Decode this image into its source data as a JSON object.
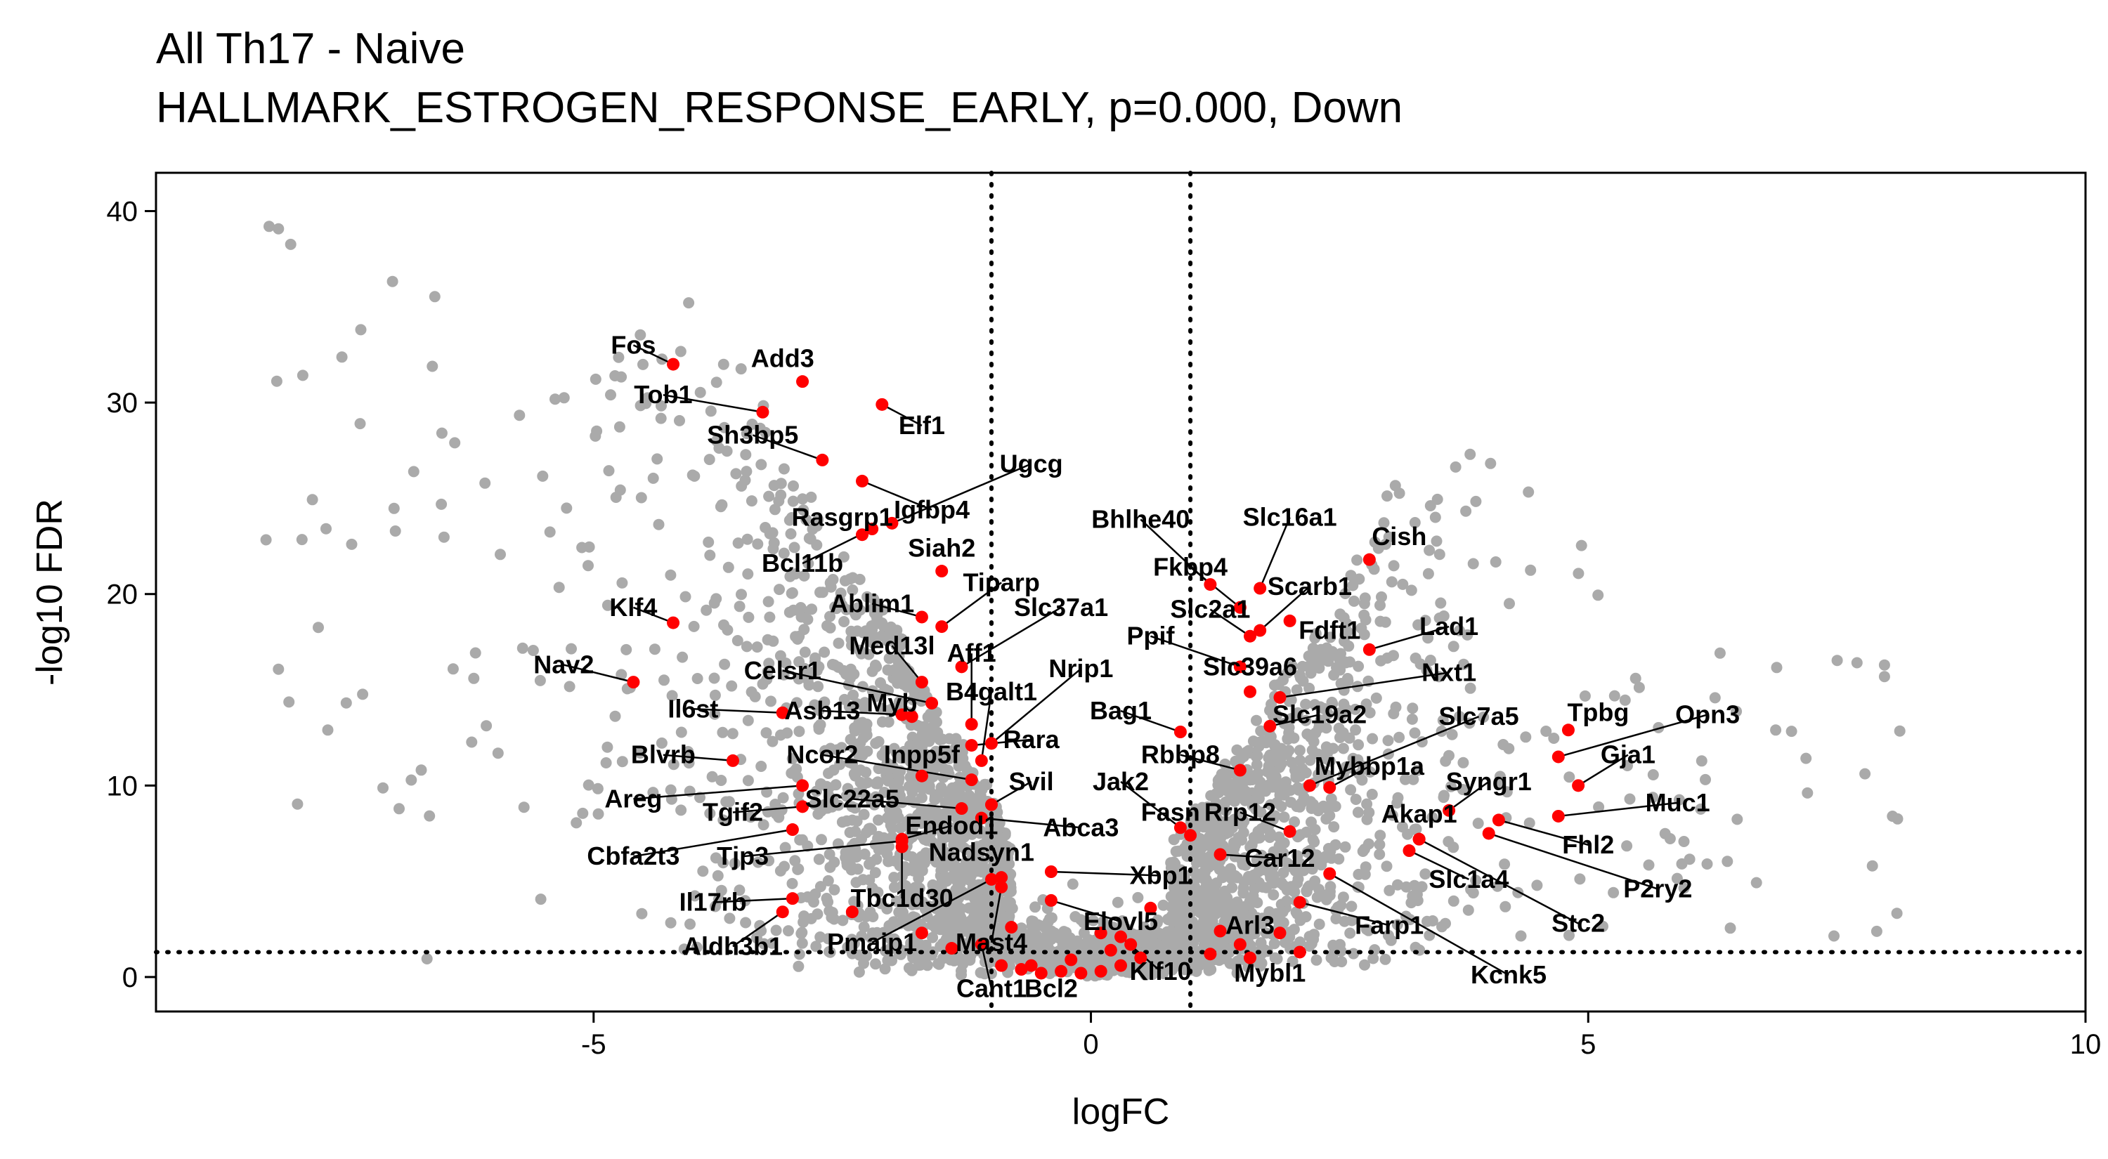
{
  "title": {
    "line1": "All Th17 - Naive",
    "line2": "HALLMARK_ESTROGEN_RESPONSE_EARLY, p=0.000, Down"
  },
  "colors": {
    "background_points": "#aaaaaa",
    "highlight_points": "#ff0000",
    "threshold_lines": "#000000",
    "text": "#000000"
  },
  "chart_data": {
    "type": "scatter",
    "xlabel": "logFC",
    "ylabel": "-log10 FDR",
    "xlim": [
      -9.4,
      10.0
    ],
    "ylim": [
      -1.8,
      42.0
    ],
    "x_ticks": [
      -5,
      0,
      5,
      10
    ],
    "x_tick_labels": [
      "-5",
      "0",
      "5",
      "10"
    ],
    "y_ticks": [
      0,
      10,
      20,
      30,
      40
    ],
    "y_tick_labels": [
      "0",
      "10",
      "20",
      "30",
      "40"
    ],
    "grid": false,
    "threshold_lines": {
      "vertical_x": [
        -1,
        1
      ],
      "horizontal_y": [
        1.3
      ],
      "style": "dotted"
    },
    "highlighted_genes": [
      {
        "gene": "Fos",
        "x": -4.2,
        "y": 32.0,
        "label_x": -4.6,
        "label_y": 33.0
      },
      {
        "gene": "Add3",
        "x": -2.9,
        "y": 31.1,
        "label_x": -3.1,
        "label_y": 32.3
      },
      {
        "gene": "Tob1",
        "x": -3.3,
        "y": 29.5,
        "label_x": -4.3,
        "label_y": 30.4
      },
      {
        "gene": "Elf1",
        "x": -2.1,
        "y": 29.9,
        "label_x": -1.7,
        "label_y": 28.8
      },
      {
        "gene": "Sh3bp5",
        "x": -2.7,
        "y": 27.0,
        "label_x": -3.4,
        "label_y": 28.3
      },
      {
        "gene": "Ugcg",
        "x": -2.0,
        "y": 23.7,
        "label_x": -0.6,
        "label_y": 26.8
      },
      {
        "gene": "Igfbp4",
        "x": -2.3,
        "y": 25.9,
        "label_x": -1.6,
        "label_y": 24.4
      },
      {
        "gene": "Rasgrp1",
        "x": -2.3,
        "y": 23.1,
        "label_x": -2.5,
        "label_y": 24.0
      },
      {
        "gene": "Bcl11b",
        "x": -2.2,
        "y": 23.4,
        "label_x": -2.9,
        "label_y": 21.6
      },
      {
        "gene": "Siah2",
        "x": -1.5,
        "y": 21.2,
        "label_x": -1.5,
        "label_y": 22.4
      },
      {
        "gene": "Bhlhe40",
        "x": 1.2,
        "y": 20.5,
        "label_x": 0.5,
        "label_y": 23.9
      },
      {
        "gene": "Slc16a1",
        "x": 1.7,
        "y": 20.3,
        "label_x": 2.0,
        "label_y": 24.0
      },
      {
        "gene": "Cish",
        "x": 2.8,
        "y": 21.8,
        "label_x": 3.1,
        "label_y": 23.0
      },
      {
        "gene": "Fkbp4",
        "x": 1.5,
        "y": 19.3,
        "label_x": 1.0,
        "label_y": 21.4
      },
      {
        "gene": "Scarb1",
        "x": 1.7,
        "y": 18.1,
        "label_x": 2.2,
        "label_y": 20.4
      },
      {
        "gene": "Tiparp",
        "x": -1.5,
        "y": 18.3,
        "label_x": -0.9,
        "label_y": 20.6
      },
      {
        "gene": "Ablim1",
        "x": -1.7,
        "y": 18.8,
        "label_x": -2.2,
        "label_y": 19.5
      },
      {
        "gene": "Slc37a1",
        "x": -1.3,
        "y": 16.2,
        "label_x": -0.3,
        "label_y": 19.3
      },
      {
        "gene": "Slc2a1",
        "x": 1.6,
        "y": 17.8,
        "label_x": 1.2,
        "label_y": 19.2
      },
      {
        "gene": "Fdft1",
        "x": 2.0,
        "y": 18.6,
        "label_x": 2.4,
        "label_y": 18.1
      },
      {
        "gene": "Klf4",
        "x": -4.2,
        "y": 18.5,
        "label_x": -4.6,
        "label_y": 19.3
      },
      {
        "gene": "Ppif",
        "x": 1.5,
        "y": 16.2,
        "label_x": 0.6,
        "label_y": 17.8
      },
      {
        "gene": "Lad1",
        "x": 2.8,
        "y": 17.1,
        "label_x": 3.6,
        "label_y": 18.3
      },
      {
        "gene": "Med13l",
        "x": -1.7,
        "y": 15.4,
        "label_x": -2.0,
        "label_y": 17.3
      },
      {
        "gene": "Aff1",
        "x": -1.2,
        "y": 13.2,
        "label_x": -1.2,
        "label_y": 16.9
      },
      {
        "gene": "Slc39a6",
        "x": 1.6,
        "y": 14.9,
        "label_x": 1.6,
        "label_y": 16.2
      },
      {
        "gene": "Nav2",
        "x": -4.6,
        "y": 15.4,
        "label_x": -5.3,
        "label_y": 16.3
      },
      {
        "gene": "Celsr1",
        "x": -1.6,
        "y": 14.3,
        "label_x": -3.1,
        "label_y": 16.0
      },
      {
        "gene": "Nrip1",
        "x": -1.0,
        "y": 12.2,
        "label_x": -0.1,
        "label_y": 16.1
      },
      {
        "gene": "Nxt1",
        "x": 1.9,
        "y": 14.6,
        "label_x": 3.6,
        "label_y": 15.9
      },
      {
        "gene": "B4galt1",
        "x": -1.1,
        "y": 11.3,
        "label_x": -1.0,
        "label_y": 14.9
      },
      {
        "gene": "Myb",
        "x": -1.8,
        "y": 13.6,
        "label_x": -2.0,
        "label_y": 14.3
      },
      {
        "gene": "Il6st",
        "x": -3.1,
        "y": 13.8,
        "label_x": -4.0,
        "label_y": 14.0
      },
      {
        "gene": "Asb13",
        "x": -1.9,
        "y": 13.7,
        "label_x": -2.7,
        "label_y": 13.9
      },
      {
        "gene": "Bag1",
        "x": 0.9,
        "y": 12.8,
        "label_x": 0.3,
        "label_y": 13.9
      },
      {
        "gene": "Slc19a2",
        "x": 1.8,
        "y": 13.1,
        "label_x": 2.3,
        "label_y": 13.7
      },
      {
        "gene": "Slc7a5",
        "x": 2.2,
        "y": 10.0,
        "label_x": 3.9,
        "label_y": 13.6
      },
      {
        "gene": "Tpbg",
        "x": 4.8,
        "y": 12.9,
        "label_x": 5.1,
        "label_y": 13.8
      },
      {
        "gene": "Opn3",
        "x": 4.7,
        "y": 11.5,
        "label_x": 6.2,
        "label_y": 13.7
      },
      {
        "gene": "Rara",
        "x": -1.2,
        "y": 12.1,
        "label_x": -0.6,
        "label_y": 12.4
      },
      {
        "gene": "Rbbp8",
        "x": 1.5,
        "y": 10.8,
        "label_x": 0.9,
        "label_y": 11.6
      },
      {
        "gene": "Blvrb",
        "x": -3.6,
        "y": 11.3,
        "label_x": -4.3,
        "label_y": 11.6
      },
      {
        "gene": "Ncor2",
        "x": -1.2,
        "y": 10.3,
        "label_x": -2.7,
        "label_y": 11.6
      },
      {
        "gene": "Inpp5f",
        "x": -1.7,
        "y": 10.5,
        "label_x": -1.7,
        "label_y": 11.6
      },
      {
        "gene": "Gja1",
        "x": 4.9,
        "y": 10.0,
        "label_x": 5.4,
        "label_y": 11.6
      },
      {
        "gene": "Mybbp1a",
        "x": 2.4,
        "y": 9.9,
        "label_x": 2.8,
        "label_y": 11.0
      },
      {
        "gene": "Svil",
        "x": -1.0,
        "y": 9.0,
        "label_x": -0.6,
        "label_y": 10.2
      },
      {
        "gene": "Jak2",
        "x": 0.9,
        "y": 7.8,
        "label_x": 0.3,
        "label_y": 10.2
      },
      {
        "gene": "Syngr1",
        "x": 3.6,
        "y": 8.7,
        "label_x": 4.0,
        "label_y": 10.2
      },
      {
        "gene": "Areg",
        "x": -2.9,
        "y": 10.0,
        "label_x": -4.6,
        "label_y": 9.3
      },
      {
        "gene": "Slc22a5",
        "x": -1.3,
        "y": 8.8,
        "label_x": -2.4,
        "label_y": 9.3
      },
      {
        "gene": "Muc1",
        "x": 4.7,
        "y": 8.4,
        "label_x": 5.9,
        "label_y": 9.1
      },
      {
        "gene": "Tgif2",
        "x": -2.9,
        "y": 8.9,
        "label_x": -3.6,
        "label_y": 8.6
      },
      {
        "gene": "Fasn",
        "x": 1.0,
        "y": 7.4,
        "label_x": 0.8,
        "label_y": 8.6
      },
      {
        "gene": "Rrp12",
        "x": 2.0,
        "y": 7.6,
        "label_x": 1.5,
        "label_y": 8.6
      },
      {
        "gene": "Akap1",
        "x": 3.3,
        "y": 7.2,
        "label_x": 3.3,
        "label_y": 8.5
      },
      {
        "gene": "Endod1",
        "x": -1.9,
        "y": 7.2,
        "label_x": -1.4,
        "label_y": 7.9
      },
      {
        "gene": "Abca3",
        "x": -1.1,
        "y": 8.3,
        "label_x": -0.1,
        "label_y": 7.8
      },
      {
        "gene": "Fhl2",
        "x": 4.1,
        "y": 8.2,
        "label_x": 5.0,
        "label_y": 6.9
      },
      {
        "gene": "Cbfa2t3",
        "x": -3.0,
        "y": 7.7,
        "label_x": -4.6,
        "label_y": 6.3
      },
      {
        "gene": "Tjp3",
        "x": -1.9,
        "y": 7.1,
        "label_x": -3.5,
        "label_y": 6.3
      },
      {
        "gene": "Nadsyn1",
        "x": -0.9,
        "y": 5.2,
        "label_x": -1.1,
        "label_y": 6.5
      },
      {
        "gene": "Car12",
        "x": 1.3,
        "y": 6.4,
        "label_x": 1.9,
        "label_y": 6.2
      },
      {
        "gene": "Xbp1",
        "x": -0.4,
        "y": 5.5,
        "label_x": 0.7,
        "label_y": 5.3
      },
      {
        "gene": "Slc1a4",
        "x": 3.2,
        "y": 6.6,
        "label_x": 3.8,
        "label_y": 5.1
      },
      {
        "gene": "P2ry2",
        "x": 4.0,
        "y": 7.5,
        "label_x": 5.7,
        "label_y": 4.6
      },
      {
        "gene": "Tbc1d30",
        "x": -1.9,
        "y": 6.8,
        "label_x": -1.9,
        "label_y": 4.1
      },
      {
        "gene": "Il17rb",
        "x": -3.0,
        "y": 4.1,
        "label_x": -3.8,
        "label_y": 3.9
      },
      {
        "gene": "Arl3",
        "x": 1.5,
        "y": 1.7,
        "label_x": 1.6,
        "label_y": 2.7
      },
      {
        "gene": "Farp1",
        "x": 2.1,
        "y": 3.9,
        "label_x": 3.0,
        "label_y": 2.7
      },
      {
        "gene": "Stc2",
        "x": 3.3,
        "y": 7.2,
        "label_x": 4.9,
        "label_y": 2.8
      },
      {
        "gene": "Elovl5",
        "x": -0.4,
        "y": 4.0,
        "label_x": 0.3,
        "label_y": 2.9
      },
      {
        "gene": "Pmaip1",
        "x": -1.0,
        "y": 5.1,
        "label_x": -2.2,
        "label_y": 1.8
      },
      {
        "gene": "Mast4",
        "x": -0.9,
        "y": 4.7,
        "label_x": -1.0,
        "label_y": 1.8
      },
      {
        "gene": "Aldh3b1",
        "x": -3.1,
        "y": 3.4,
        "label_x": -3.6,
        "label_y": 1.6
      },
      {
        "gene": "Klf10",
        "x": 0.3,
        "y": 2.1,
        "label_x": 0.7,
        "label_y": 0.3
      },
      {
        "gene": "Mybl1",
        "x": 1.9,
        "y": 2.3,
        "label_x": 1.8,
        "label_y": 0.2
      },
      {
        "gene": "Kcnk5",
        "x": 2.4,
        "y": 5.4,
        "label_x": 4.2,
        "label_y": 0.1
      },
      {
        "gene": "Cant1",
        "x": -1.1,
        "y": 1.7,
        "label_x": -1.0,
        "label_y": -0.6
      },
      {
        "gene": "Bcl2",
        "x": -0.6,
        "y": 0.6,
        "label_x": -0.4,
        "label_y": -0.6
      }
    ],
    "extra_highlighted_points": [
      {
        "x": -0.9,
        "y": 0.6
      },
      {
        "x": -0.7,
        "y": 0.4
      },
      {
        "x": -0.5,
        "y": 0.2
      },
      {
        "x": -0.3,
        "y": 0.3
      },
      {
        "x": -0.1,
        "y": 0.2
      },
      {
        "x": 0.1,
        "y": 0.3
      },
      {
        "x": 0.3,
        "y": 0.6
      },
      {
        "x": 0.5,
        "y": 1.0
      },
      {
        "x": 0.2,
        "y": 1.4
      },
      {
        "x": -0.2,
        "y": 0.9
      },
      {
        "x": 0.6,
        "y": 3.6
      },
      {
        "x": 0.4,
        "y": 1.7
      },
      {
        "x": 1.2,
        "y": 1.2
      },
      {
        "x": 1.6,
        "y": 1.0
      },
      {
        "x": 2.1,
        "y": 1.3
      },
      {
        "x": 1.3,
        "y": 2.4
      },
      {
        "x": -2.4,
        "y": 3.4
      },
      {
        "x": -1.4,
        "y": 1.5
      },
      {
        "x": -1.7,
        "y": 2.3
      },
      {
        "x": -0.8,
        "y": 2.6
      },
      {
        "x": 0.1,
        "y": 2.3
      }
    ]
  }
}
